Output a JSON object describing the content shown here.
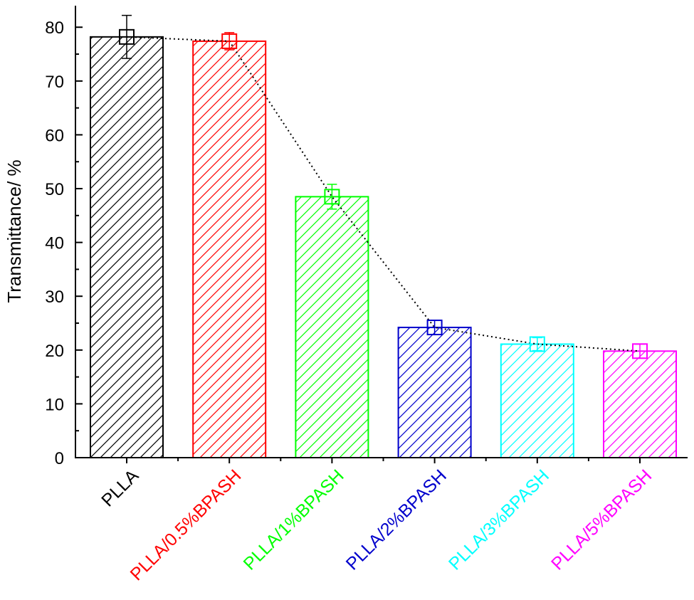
{
  "chart_data": {
    "type": "bar",
    "title": "",
    "xlabel": "",
    "ylabel": "Transmittance/ %",
    "ylim": [
      0,
      84
    ],
    "yticks": [
      0,
      10,
      20,
      30,
      40,
      50,
      60,
      70,
      80
    ],
    "categories": [
      "PLLA",
      "PLLA/0.5%BPASH",
      "PLLA/1%BPASH",
      "PLLA/2%BPASH",
      "PLLA/3%BPASH",
      "PLLA/5%BPASH"
    ],
    "values": [
      78.2,
      77.4,
      48.5,
      24.2,
      21.1,
      19.8
    ],
    "errors": [
      4.0,
      1.6,
      2.3,
      1.3,
      1.2,
      1.3
    ],
    "colors": [
      "#000000",
      "#ff0000",
      "#00ff00",
      "#0000cc",
      "#00ffff",
      "#ff00ff"
    ],
    "fill_pattern": "diagonal-hatch",
    "overlay": {
      "type": "line",
      "values": [
        78.2,
        77.4,
        48.5,
        24.2,
        21.1,
        19.8
      ],
      "line_style": "dotted",
      "line_color": "#000000",
      "marker": "open-square"
    },
    "grid": false,
    "legend": "none"
  }
}
